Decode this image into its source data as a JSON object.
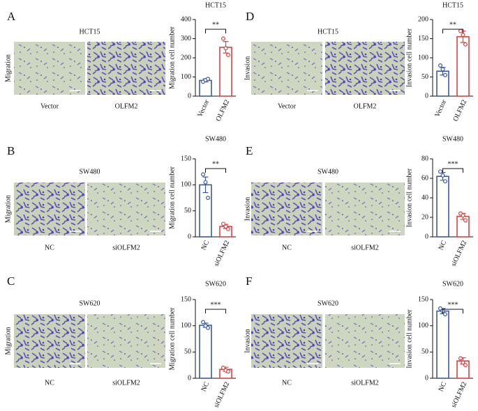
{
  "panels": [
    {
      "letter": "A",
      "cell_line": "HCT15",
      "assay": "Migration",
      "image_labels": [
        "Vector",
        "OLFM2"
      ]
    },
    {
      "letter": "D",
      "cell_line": "HCT15",
      "assay": "Invasion",
      "image_labels": [
        "Vector",
        "OLFM2"
      ]
    },
    {
      "letter": "B",
      "cell_line": "SW480",
      "assay": "Migration",
      "image_labels": [
        "NC",
        "siOLFM2"
      ]
    },
    {
      "letter": "E",
      "cell_line": "SW480",
      "assay": "Invasion",
      "image_labels": [
        "NC",
        "siOLFM2"
      ]
    },
    {
      "letter": "C",
      "cell_line": "SW620",
      "assay": "Migration",
      "image_labels": [
        "NC",
        "siOLFM2"
      ]
    },
    {
      "letter": "F",
      "cell_line": "SW620",
      "assay": "Invasion",
      "image_labels": [
        "NC",
        "siOLFM2"
      ]
    }
  ],
  "chart_data": [
    {
      "type": "bar",
      "title": "HCT15",
      "y_label": "Migration cell number",
      "categories": [
        "Vector",
        "OLFM2"
      ],
      "values": [
        82,
        255
      ],
      "errors": [
        8,
        30
      ],
      "points": [
        [
          75,
          84,
          90
        ],
        [
          300,
          250,
          215
        ]
      ],
      "colors": [
        "#3d5a9e",
        "#e0403f"
      ],
      "ylim": [
        0,
        400
      ],
      "yticks": [
        0,
        100,
        200,
        300,
        400
      ],
      "significance": "**"
    },
    {
      "type": "bar",
      "title": "HCT15",
      "y_label": "Invasion cell number",
      "categories": [
        "Vector",
        "OLFM2"
      ],
      "values": [
        65,
        155
      ],
      "errors": [
        10,
        15
      ],
      "points": [
        [
          80,
          70,
          55
        ],
        [
          170,
          160,
          135
        ]
      ],
      "colors": [
        "#3d5a9e",
        "#e0403f"
      ],
      "ylim": [
        0,
        200
      ],
      "yticks": [
        0,
        50,
        100,
        150,
        200
      ],
      "significance": "**"
    },
    {
      "type": "bar",
      "title": "SW480",
      "y_label": "Migration cell number",
      "categories": [
        "NC",
        "siOLFM2"
      ],
      "values": [
        100,
        20
      ],
      "errors": [
        15,
        4
      ],
      "points": [
        [
          120,
          105,
          75
        ],
        [
          25,
          20,
          15
        ]
      ],
      "colors": [
        "#3d5a9e",
        "#e0403f"
      ],
      "ylim": [
        0,
        150
      ],
      "yticks": [
        0,
        50,
        100,
        150
      ],
      "significance": "**"
    },
    {
      "type": "bar",
      "title": "SW480",
      "y_label": "Invasion cell number",
      "categories": [
        "NC",
        "siOLFM2"
      ],
      "values": [
        62,
        21
      ],
      "errors": [
        4,
        3
      ],
      "points": [
        [
          67,
          63,
          57
        ],
        [
          24,
          22,
          17
        ]
      ],
      "colors": [
        "#3d5a9e",
        "#e0403f"
      ],
      "ylim": [
        0,
        80
      ],
      "yticks": [
        0,
        20,
        40,
        60,
        80
      ],
      "significance": "***"
    },
    {
      "type": "bar",
      "title": "SW620",
      "y_label": "Migration cell number",
      "categories": [
        "NC",
        "siOLFM2"
      ],
      "values": [
        101,
        17
      ],
      "errors": [
        4,
        4
      ],
      "points": [
        [
          107,
          100,
          96
        ],
        [
          20,
          15,
          13
        ]
      ],
      "colors": [
        "#3d5a9e",
        "#e0403f"
      ],
      "ylim": [
        0,
        150
      ],
      "yticks": [
        0,
        50,
        100,
        150
      ],
      "significance": "***"
    },
    {
      "type": "bar",
      "title": "SW620",
      "y_label": "Invasion cell number",
      "categories": [
        "NC",
        "siOLFM2"
      ],
      "values": [
        128,
        33
      ],
      "errors": [
        5,
        6
      ],
      "points": [
        [
          133,
          128,
          122
        ],
        [
          38,
          30,
          25
        ]
      ],
      "colors": [
        "#3d5a9e",
        "#e0403f"
      ],
      "ylim": [
        0,
        150
      ],
      "yticks": [
        0,
        50,
        100,
        150
      ],
      "significance": "***"
    }
  ]
}
